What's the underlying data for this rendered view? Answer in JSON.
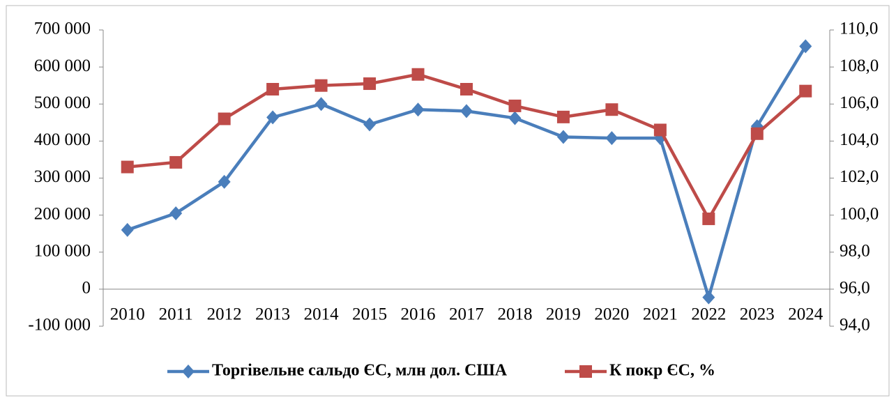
{
  "chart_data": {
    "type": "line",
    "categories": [
      "2010",
      "2011",
      "2012",
      "2013",
      "2014",
      "2015",
      "2016",
      "2017",
      "2018",
      "2019",
      "2020",
      "2021",
      "2022",
      "2023",
      "2024"
    ],
    "series": [
      {
        "name": "Торгівельне сальдо ЄС, млн дол. США",
        "color": "#4a7ebb",
        "marker": "diamond",
        "values": [
          160000,
          205000,
          290000,
          464000,
          500000,
          445000,
          485000,
          481000,
          462000,
          411000,
          408000,
          408000,
          -22000,
          440000,
          656000
        ]
      },
      {
        "name": "К покр ЄС, %",
        "color": "#be4b48",
        "marker": "square",
        "axis": "y2",
        "values": [
          102.6,
          102.85,
          105.2,
          106.8,
          107.0,
          107.1,
          107.6,
          106.8,
          105.9,
          105.3,
          105.7,
          104.6,
          99.8,
          104.4,
          106.7
        ]
      }
    ],
    "ylim": [
      -100000,
      700000
    ],
    "yticks": [
      {
        "value": -100000,
        "label": "-100 000"
      },
      0,
      {
        "value": 100000,
        "label": "100 000"
      },
      {
        "value": 200000,
        "label": "200 000"
      },
      {
        "value": 300000,
        "label": "300 000"
      },
      {
        "value": 400000,
        "label": "400 000"
      },
      {
        "value": 500000,
        "label": "500 000"
      },
      {
        "value": 600000,
        "label": "600 000"
      },
      {
        "value": 700000,
        "label": "700 000"
      }
    ],
    "y2lim": [
      94,
      110
    ],
    "y2ticks": [
      {
        "value": 94,
        "label": "94,0"
      },
      {
        "value": 96,
        "label": "96,0"
      },
      {
        "value": 98,
        "label": "98,0"
      },
      {
        "value": 100,
        "label": "100,0"
      },
      {
        "value": 102,
        "label": "102,0"
      },
      {
        "value": 104,
        "label": "104,0"
      },
      {
        "value": 106,
        "label": "106,0"
      },
      {
        "value": 108,
        "label": "108,0"
      },
      {
        "value": 110,
        "label": "110,0"
      }
    ],
    "grid": false,
    "legend": "bottom"
  }
}
